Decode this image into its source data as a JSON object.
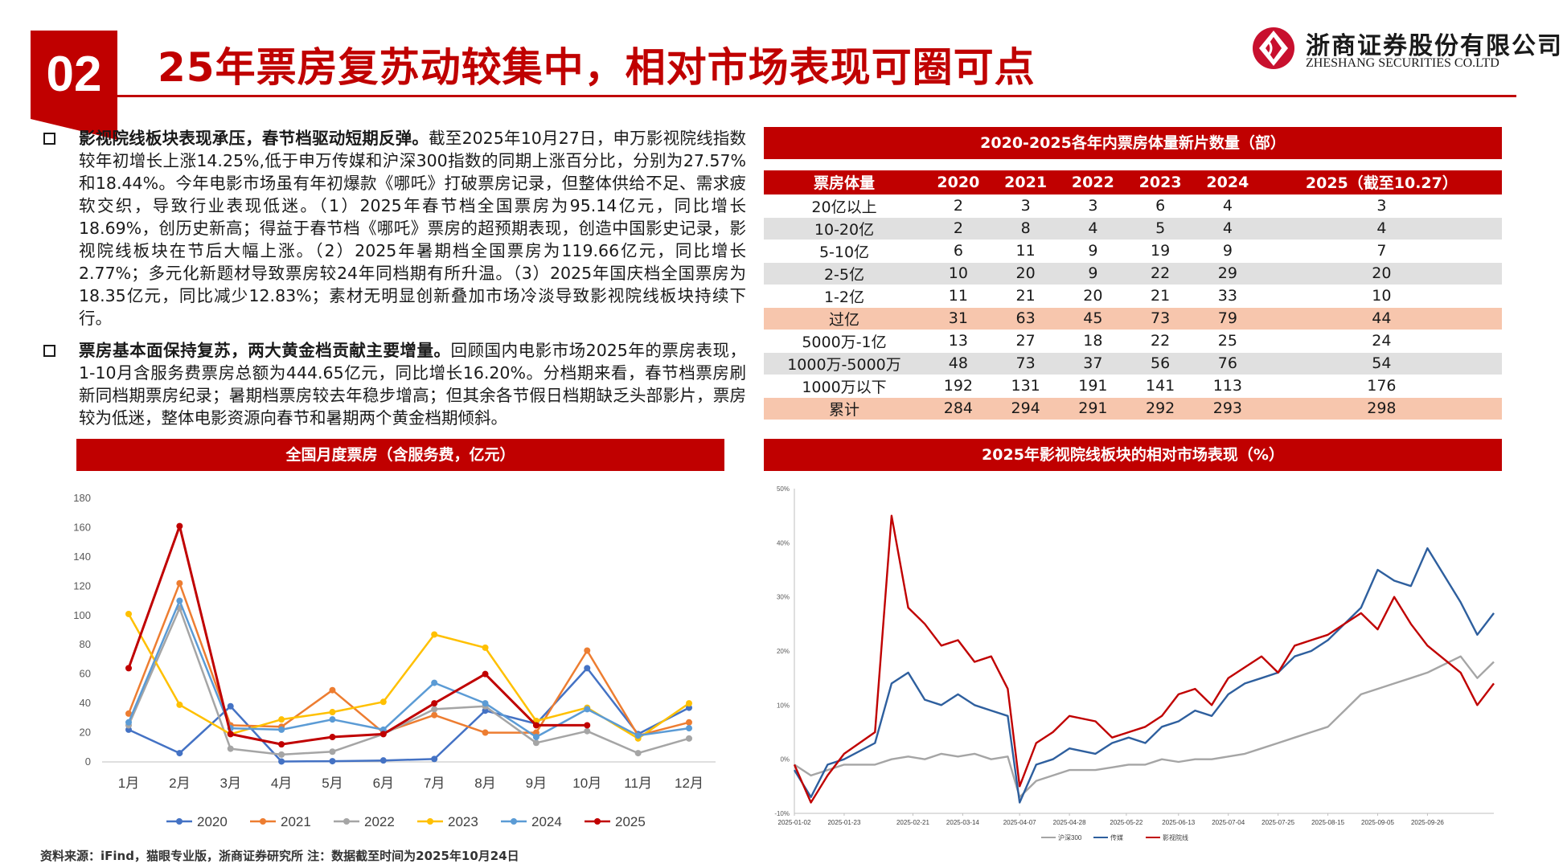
{
  "header": {
    "number": "02",
    "title": "25年票房复苏动较集中，相对市场表现可圈可点",
    "logo_cn": "浙商证券股份有限公司",
    "logo_en": "ZHESHANG SECURITIES CO.LTD"
  },
  "bullets": [
    {
      "bold": "影视院线板块表现承压，春节档驱动短期反弹。",
      "text": "截至2025年10月27日，申万影视院线指数较年初增长上涨14.25%,低于申万传媒和沪深300指数的同期上涨百分比，分别为27.57%和18.44%。今年电影市场虽有年初爆款《哪吒》打破票房记录，但整体供给不足、需求疲软交织，导致行业表现低迷。（1）2025年春节档全国票房为95.14亿元，同比增长18.69%，创历史新高；得益于春节档《哪吒》票房的超预期表现，创造中国影史记录，影视院线板块在节后大幅上涨。（2）2025年暑期档全国票房为119.66亿元，同比增长2.77%；多元化新题材导致票房较24年同档期有所升温。（3）2025年国庆档全国票房为18.35亿元，同比减少12.83%；素材无明显创新叠加市场冷淡导致影视院线板块持续下行。"
    },
    {
      "bold": "票房基本面保持复苏，两大黄金档贡献主要增量。",
      "text": "回顾国内电影市场2025年的票房表现，1-10月含服务费票房总额为444.65亿元，同比增长16.20%。分档期来看，春节档票房刷新同档期票房纪录；暑期档票房较去年稳步增高；但其余各节假日档期缺乏头部影片，票房较为低迷，整体电影资源向春节和暑期两个黄金档期倾斜。"
    }
  ],
  "table": {
    "title": "2020-2025各年内票房体量新片数量（部）",
    "headers": [
      "票房体量",
      "2020",
      "2021",
      "2022",
      "2023",
      "2024",
      "2025（截至10.27）"
    ],
    "rows": [
      {
        "cells": [
          "20亿以上",
          "2",
          "3",
          "3",
          "6",
          "4",
          "3"
        ],
        "style": "odd"
      },
      {
        "cells": [
          "10-20亿",
          "2",
          "8",
          "4",
          "5",
          "4",
          "4"
        ],
        "style": "even"
      },
      {
        "cells": [
          "5-10亿",
          "6",
          "11",
          "9",
          "19",
          "9",
          "7"
        ],
        "style": "odd"
      },
      {
        "cells": [
          "2-5亿",
          "10",
          "20",
          "9",
          "22",
          "29",
          "20"
        ],
        "style": "even"
      },
      {
        "cells": [
          "1-2亿",
          "11",
          "21",
          "20",
          "21",
          "33",
          "10"
        ],
        "style": "odd"
      },
      {
        "cells": [
          "过亿",
          "31",
          "63",
          "45",
          "73",
          "79",
          "44"
        ],
        "style": "hl"
      },
      {
        "cells": [
          "5000万-1亿",
          "13",
          "27",
          "18",
          "22",
          "25",
          "24"
        ],
        "style": "odd"
      },
      {
        "cells": [
          "1000万-5000万",
          "48",
          "73",
          "37",
          "56",
          "76",
          "54"
        ],
        "style": "even"
      },
      {
        "cells": [
          "1000万以下",
          "192",
          "131",
          "191",
          "141",
          "113",
          "176"
        ],
        "style": "odd"
      },
      {
        "cells": [
          "累计",
          "284",
          "294",
          "291",
          "292",
          "293",
          "298"
        ],
        "style": "hl"
      }
    ]
  },
  "chart_data": [
    {
      "type": "line",
      "title": "全国月度票房（含服务费，亿元）",
      "categories": [
        "1月",
        "2月",
        "3月",
        "4月",
        "5月",
        "6月",
        "7月",
        "8月",
        "9月",
        "10月",
        "11月",
        "12月"
      ],
      "ylim": [
        0,
        180
      ],
      "yticks": [
        "0",
        "20",
        "40",
        "60",
        "80",
        "100",
        "120",
        "140",
        "160",
        "180"
      ],
      "series": [
        {
          "name": "2020",
          "color": "#4472c4",
          "values": [
            22,
            6,
            38,
            0.3,
            0.5,
            1,
            2,
            35,
            26,
            64,
            19,
            37
          ]
        },
        {
          "name": "2021",
          "color": "#ed7d31",
          "values": [
            33,
            122,
            25,
            24,
            49,
            20,
            32,
            20,
            20,
            76,
            18,
            27
          ]
        },
        {
          "name": "2022",
          "color": "#a5a5a5",
          "values": [
            25,
            105,
            9,
            5,
            7,
            19,
            36,
            38,
            13,
            21,
            6,
            16
          ]
        },
        {
          "name": "2023",
          "color": "#ffc000",
          "values": [
            101,
            39,
            19,
            29,
            34,
            41,
            87,
            78,
            28,
            37,
            16,
            40
          ]
        },
        {
          "name": "2024",
          "color": "#5b9bd5",
          "values": [
            27,
            110,
            23,
            22,
            29,
            22,
            54,
            40,
            17,
            36,
            18,
            23
          ]
        },
        {
          "name": "2025",
          "color": "#c00000",
          "values": [
            64,
            161,
            19,
            12,
            17,
            19,
            40,
            60,
            25,
            25,
            null,
            null
          ]
        }
      ]
    },
    {
      "type": "line",
      "title": "2025年影视院线板块的相对市场表现（%）",
      "yticks": [
        "-10%",
        "0%",
        "10%",
        "20%",
        "30%",
        "40%",
        "50%"
      ],
      "ylim": [
        -10,
        50
      ],
      "xticks": [
        "2025-01-02",
        "2025-01-23",
        "2025-02-21",
        "2025-03-14",
        "2025-04-07",
        "2025-04-28",
        "2025-05-22",
        "2025-06-13",
        "2025-07-04",
        "2025-07-25",
        "2025-08-15",
        "2025-09-05",
        "2025-09-26"
      ],
      "x": [
        "2025-01-02",
        "2025-01-09",
        "2025-01-16",
        "2025-01-23",
        "2025-02-05",
        "2025-02-12",
        "2025-02-19",
        "2025-02-26",
        "2025-03-05",
        "2025-03-12",
        "2025-03-19",
        "2025-03-26",
        "2025-04-02",
        "2025-04-07",
        "2025-04-14",
        "2025-04-21",
        "2025-04-28",
        "2025-05-09",
        "2025-05-16",
        "2025-05-23",
        "2025-05-30",
        "2025-06-06",
        "2025-06-13",
        "2025-06-20",
        "2025-06-27",
        "2025-07-04",
        "2025-07-11",
        "2025-07-18",
        "2025-07-25",
        "2025-08-01",
        "2025-08-08",
        "2025-08-15",
        "2025-08-22",
        "2025-08-29",
        "2025-09-05",
        "2025-09-12",
        "2025-09-19",
        "2025-09-26",
        "2025-10-10",
        "2025-10-17",
        "2025-10-24"
      ],
      "series": [
        {
          "name": "沪深300",
          "color": "#a5a5a5",
          "values": [
            -1,
            -3,
            -2,
            -1,
            -1,
            0,
            0.5,
            0,
            1,
            0.5,
            1,
            0,
            0.5,
            -7,
            -4,
            -3,
            -2,
            -2,
            -1.5,
            -1,
            -1,
            0,
            -0.5,
            0,
            0,
            0.5,
            1,
            2,
            3,
            4,
            5,
            6,
            9,
            12,
            13,
            14,
            15,
            16,
            19,
            15,
            18
          ]
        },
        {
          "name": "传媒",
          "color": "#2e5f9e",
          "values": [
            -2,
            -7,
            -1,
            0,
            3,
            14,
            16,
            11,
            10,
            12,
            10,
            9,
            8,
            -8,
            -1,
            0,
            2,
            1,
            3,
            4,
            3,
            6,
            7,
            9,
            8,
            12,
            14,
            15,
            16,
            19,
            20,
            22,
            25,
            28,
            35,
            33,
            32,
            39,
            29,
            23,
            27
          ]
        },
        {
          "name": "影视院线",
          "color": "#c00000",
          "values": [
            -1,
            -8,
            -3,
            1,
            5,
            45,
            28,
            25,
            21,
            22,
            18,
            19,
            13,
            -5,
            3,
            5,
            8,
            7,
            4,
            5,
            6,
            8,
            12,
            13,
            10,
            15,
            17,
            19,
            16,
            21,
            22,
            23,
            25,
            27,
            24,
            30,
            25,
            21,
            16,
            10,
            14
          ]
        }
      ]
    }
  ],
  "source": "资料来源：iFind，猫眼专业版，浙商证券研究所    注：数据截至时间为2025年10月24日"
}
